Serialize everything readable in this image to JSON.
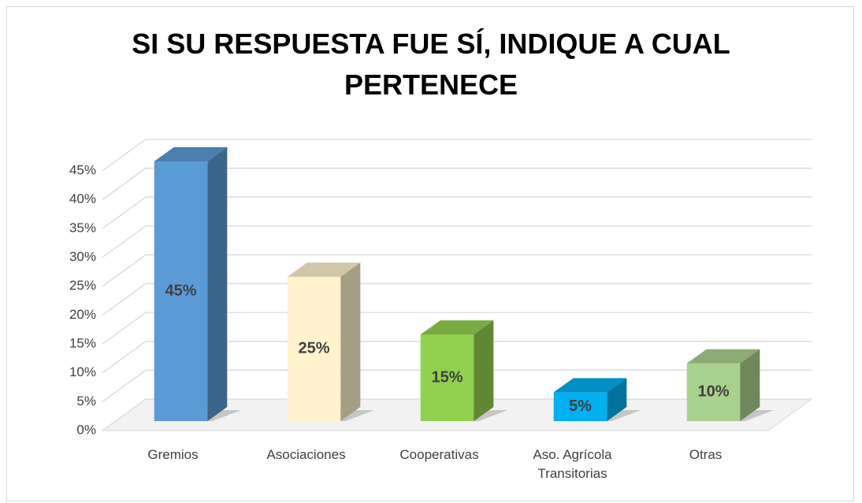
{
  "chart_data": {
    "type": "bar3d",
    "title": "SI SU RESPUESTA FUE SÍ, INDIQUE A CUAL PERTENECE",
    "categories": [
      "Gremios",
      "Asociaciones",
      "Cooperativas",
      "Aso. Agrícola Transitorias",
      "Otras"
    ],
    "values": [
      45,
      25,
      15,
      5,
      10
    ],
    "value_labels": [
      "45%",
      "25%",
      "15%",
      "5%",
      "10%"
    ],
    "colors": [
      "#5b9bd5",
      "#fff2cc",
      "#92d050",
      "#00b0f0",
      "#a9d18e"
    ],
    "ylim": [
      0,
      45
    ],
    "yticks": [
      {
        "value": 0,
        "label": "0%"
      },
      {
        "value": 5,
        "label": "5%"
      },
      {
        "value": 10,
        "label": "10%"
      },
      {
        "value": 15,
        "label": "15%"
      },
      {
        "value": 20,
        "label": "20%"
      },
      {
        "value": 25,
        "label": "25%"
      },
      {
        "value": 30,
        "label": "30%"
      },
      {
        "value": 35,
        "label": "35%"
      },
      {
        "value": 40,
        "label": "40%"
      },
      {
        "value": 45,
        "label": "45%"
      }
    ],
    "grid": true
  }
}
